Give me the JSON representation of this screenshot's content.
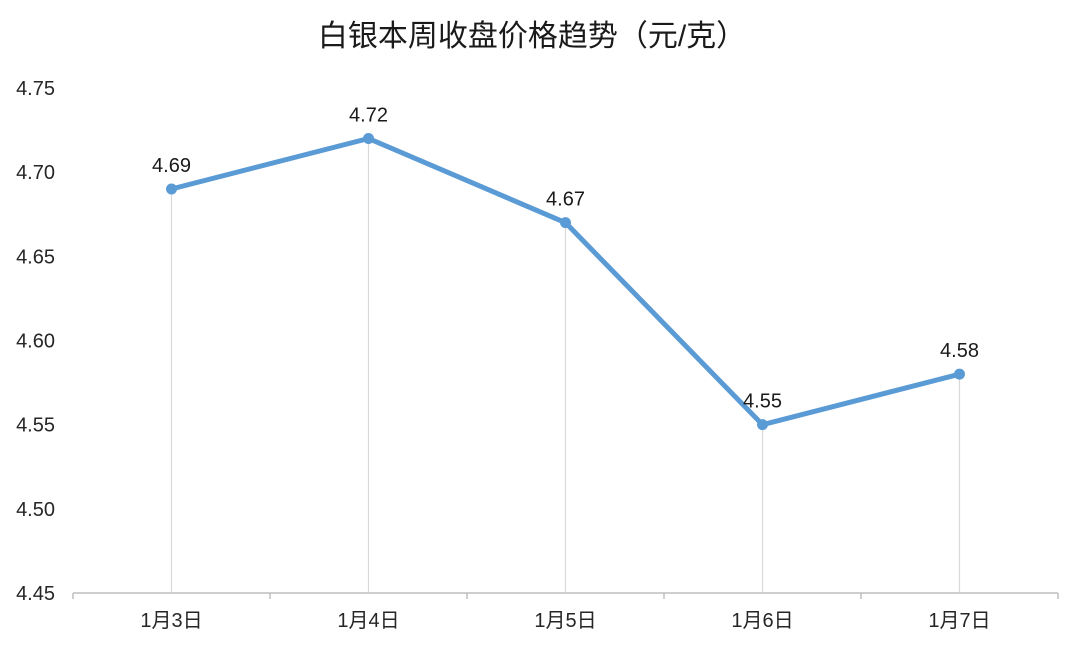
{
  "title": "白银本周收盘价格趋势（元/克）",
  "colors": {
    "line": "#5B9BD5",
    "marker": "#5B9BD5",
    "axis": "#BFBFBF",
    "dropline": "#D9D9D9",
    "text": "#262626",
    "background": "#FFFFFF"
  },
  "chart_data": {
    "type": "line",
    "title": "白银本周收盘价格趋势（元/克）",
    "categories": [
      "1月3日",
      "1月4日",
      "1月5日",
      "1月6日",
      "1月7日"
    ],
    "values": [
      4.69,
      4.72,
      4.67,
      4.55,
      4.58
    ],
    "data_labels": [
      "4.69",
      "4.72",
      "4.67",
      "4.55",
      "4.58"
    ],
    "y_ticks": [
      "4.75",
      "4.70",
      "4.65",
      "4.60",
      "4.55",
      "4.50",
      "4.45"
    ],
    "ylim": [
      4.45,
      4.75
    ],
    "xlabel": "",
    "ylabel": "",
    "grid": false,
    "legend": "none",
    "marker": "circle",
    "droplines": true
  }
}
